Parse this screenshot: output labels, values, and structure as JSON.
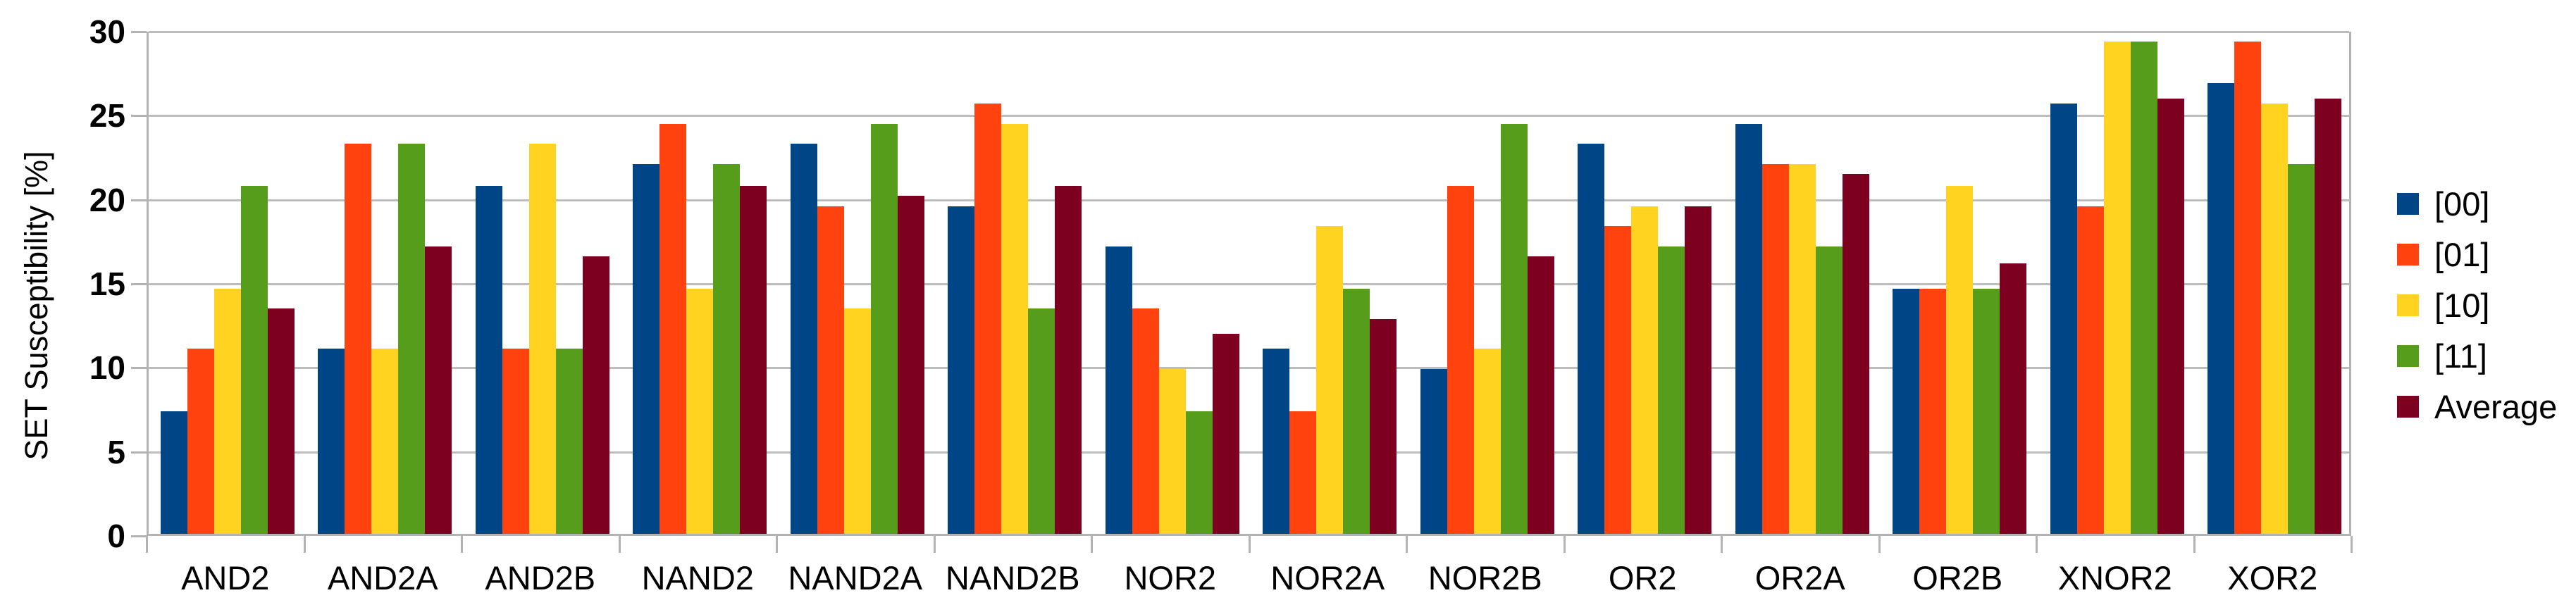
{
  "chart_data": {
    "type": "bar",
    "title": "",
    "xlabel": "",
    "ylabel": "SET Susceptibility [%]",
    "ylim": [
      0,
      30
    ],
    "yticks": [
      0,
      5,
      10,
      15,
      20,
      25,
      30
    ],
    "grid": true,
    "legend_position": "right",
    "categories": [
      "AND2",
      "AND2A",
      "AND2B",
      "NAND2",
      "NAND2A",
      "NAND2B",
      "NOR2",
      "NOR2A",
      "NOR2B",
      "OR2",
      "OR2A",
      "OR2B",
      "XNOR2",
      "XOR2"
    ],
    "series": [
      {
        "name": "[00]",
        "color": "#004586",
        "values": [
          7.3,
          11.0,
          20.7,
          22.0,
          23.2,
          19.5,
          17.1,
          11.0,
          9.8,
          23.2,
          24.4,
          14.6,
          25.6,
          26.8
        ]
      },
      {
        "name": "[01]",
        "color": "#FF420E",
        "values": [
          11.0,
          23.2,
          11.0,
          24.4,
          19.5,
          25.6,
          13.4,
          7.3,
          20.7,
          18.3,
          22.0,
          14.6,
          19.5,
          29.3
        ]
      },
      {
        "name": "[10]",
        "color": "#FFD320",
        "values": [
          14.6,
          11.0,
          23.2,
          14.6,
          13.4,
          24.4,
          9.8,
          18.3,
          11.0,
          19.5,
          22.0,
          20.7,
          29.3,
          25.6
        ]
      },
      {
        "name": "[11]",
        "color": "#579D1C",
        "values": [
          20.7,
          23.2,
          11.0,
          22.0,
          24.4,
          13.4,
          7.3,
          14.6,
          24.4,
          17.1,
          17.1,
          14.6,
          29.3,
          22.0
        ]
      },
      {
        "name": "Average",
        "color": "#7E0021",
        "values": [
          13.4,
          17.1,
          16.5,
          20.7,
          20.1,
          20.7,
          11.9,
          12.8,
          16.5,
          19.5,
          21.4,
          16.1,
          25.9,
          25.9
        ]
      }
    ]
  },
  "colors": {
    "background": "#FFFFFF",
    "gridline": "#BDBDBD",
    "axis": "#B3B3B3",
    "text": "#000000"
  }
}
